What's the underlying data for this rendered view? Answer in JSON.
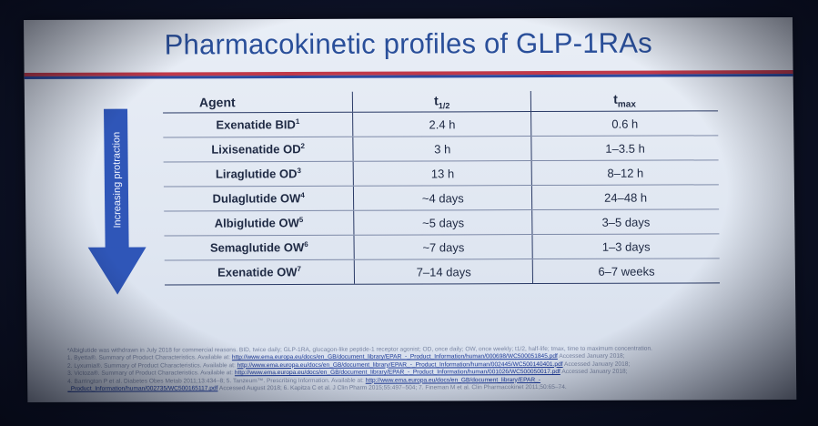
{
  "slide": {
    "title": "Pharmacokinetic profiles of GLP-1RAs",
    "arrow_label": "Increasing protraction",
    "colors": {
      "title": "#2a4f9a",
      "arrow": "#2f56b8",
      "rule_red": "#c0394a",
      "rule_blue": "#2b4aa0"
    }
  },
  "table": {
    "headers": {
      "agent": "Agent",
      "t_half": "t",
      "t_half_sub": "1/2",
      "tmax": "t",
      "tmax_sub": "max"
    },
    "rows": [
      {
        "agent": "Exenatide BID",
        "sup": "1",
        "t_half": "2.4 h",
        "tmax": "0.6 h"
      },
      {
        "agent": "Lixisenatide OD",
        "sup": "2",
        "t_half": "3 h",
        "tmax": "1–3.5 h"
      },
      {
        "agent": "Liraglutide OD",
        "sup": "3",
        "t_half": "13 h",
        "tmax": "8–12 h"
      },
      {
        "agent": "Dulaglutide OW",
        "sup": "4",
        "t_half": "~4 days",
        "tmax": "24–48 h"
      },
      {
        "agent": "Albiglutide OW",
        "sup": "5",
        "t_half": "~5 days",
        "tmax": "3–5 days"
      },
      {
        "agent": "Semaglutide OW",
        "sup": "6",
        "t_half": "~7 days",
        "tmax": "1–3 days"
      },
      {
        "agent": "Exenatide OW",
        "sup": "7",
        "t_half": "7–14 days",
        "tmax": "6–7 weeks"
      }
    ]
  },
  "footnotes": {
    "line0": "*Albiglutide was withdrawn in July 2018 for commercial reasons. BID, twice daily; GLP-1RA, glucagon-like peptide-1 receptor agonist; OD, once daily; OW, once weekly; t1/2, half-life; tmax, time to maximum concentration.",
    "line1_pre": "1. Byetta®. Summary of Product Characteristics. Available at: ",
    "line1_link": "http://www.ema.europa.eu/docs/en_GB/document_library/EPAR_-_Product_Information/human/000698/WC500051845.pdf",
    "line1_post": " Accessed January 2018;",
    "line2_pre": "2. Lyxumia®. Summary of Product Characteristics. Available at: ",
    "line2_link": "http://www.ema.europa.eu/docs/en_GB/document_library/EPAR_-_Product_Information/human/002445/WC500140401.pdf",
    "line2_post": " Accessed January 2018;",
    "line3_pre": "3. Victoza®. Summary of Product Characteristics. Available at: ",
    "line3_link": "http://www.ema.europa.eu/docs/en_GB/document_library/EPAR_-_Product_Information/human/001026/WC500050017.pdf",
    "line3_post": " Accessed January 2018;",
    "line4_pre": "4. Barrington P et al. Diabetes Obes Metab 2011;13:434–8; 5. Tanzeum™. Prescribing Information. Available at: ",
    "line4_link": "http://www.ema.europa.eu/docs/en_GB/document_library/EPAR_-",
    "line5_link": "_Product_Information/human/002735/WC500165117.pdf",
    "line5_post": " Accessed August 2018; 6. Kapitza C et al. J Clin Pharm 2015;55:497–504; 7. Fineman M et al. Clin Pharmacokinet 2011;50:65–74."
  }
}
